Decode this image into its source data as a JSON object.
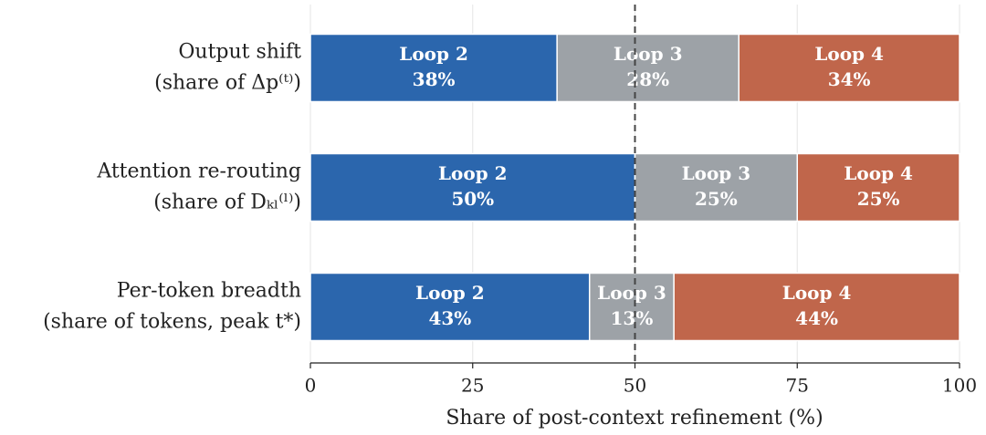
{
  "chart_data": {
    "type": "stacked-bar-horizontal",
    "categories": [
      [
        "Output shift",
        "(share of Δp⁽ᵗ⁾)"
      ],
      [
        "Attention re-routing",
        "(share of Dₖₗ⁽ˡ⁾)"
      ],
      [
        "Per-token breadth",
        "(share of tokens, peak t*)"
      ]
    ],
    "series": [
      {
        "name": "Loop 2",
        "color": "#2b66ad",
        "values": [
          38,
          50,
          43
        ],
        "value_labels": [
          "38%",
          "50%",
          "43%"
        ]
      },
      {
        "name": "Loop 3",
        "color": "#9da2a7",
        "values": [
          28,
          25,
          13
        ],
        "value_labels": [
          "28%",
          "25%",
          "13%"
        ]
      },
      {
        "name": "Loop 4",
        "color": "#c0664b",
        "values": [
          34,
          25,
          44
        ],
        "value_labels": [
          "34%",
          "25%",
          "44%"
        ]
      }
    ],
    "xlabel": "Share of post-context refinement (%)",
    "xlim": [
      0,
      100
    ],
    "xticks": [
      0,
      25,
      50,
      75,
      100
    ],
    "grid": true,
    "reference_line": 50
  }
}
